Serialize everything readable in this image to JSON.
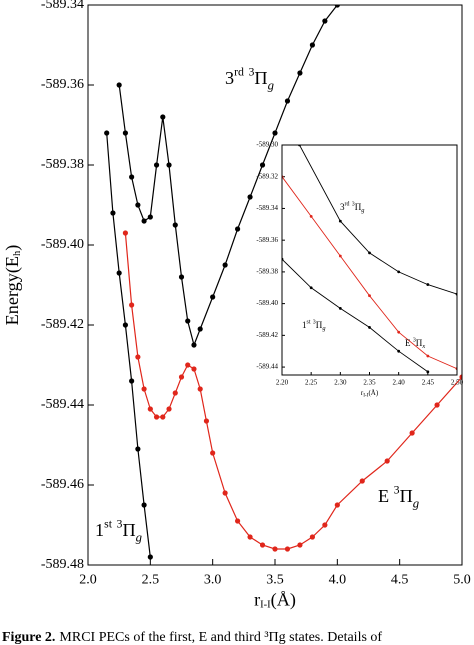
{
  "chart_data": [
    {
      "type": "line",
      "xlabel": [
        "r",
        "I-I",
        "(Å)"
      ],
      "ylabel": [
        "Energy(E",
        "h",
        ")"
      ],
      "xlim": [
        2.0,
        5.0
      ],
      "ylim": [
        -589.48,
        -589.34
      ],
      "xticks": [
        {
          "value": 2.0,
          "label": "2.0"
        },
        2.5,
        {
          "value": 3.0,
          "label": "3.0"
        },
        3.5,
        {
          "value": 4.0,
          "label": "4.0"
        },
        4.5,
        {
          "value": 5.0,
          "label": "5.0"
        }
      ],
      "yticks": [
        -589.48,
        -589.46,
        -589.44,
        -589.42,
        {
          "value": -589.4,
          "label": "-589.40"
        },
        -589.38,
        -589.36,
        -589.34
      ],
      "series": [
        {
          "name": "1st 3Πg",
          "color": "#000000",
          "x": [
            2.15,
            2.2,
            2.25,
            2.3,
            2.35,
            2.4,
            2.45,
            2.5
          ],
          "values": [
            -589.372,
            -589.392,
            -589.407,
            -589.42,
            -589.434,
            -589.451,
            -589.465,
            -589.478
          ]
        },
        {
          "name": "3rd 3Πg",
          "color": "#000000",
          "x": [
            2.25,
            2.3,
            2.35,
            2.4,
            2.45,
            2.5,
            2.55,
            2.6,
            2.65,
            2.7,
            2.75,
            2.8,
            2.85,
            2.9,
            3.0,
            3.1,
            3.2,
            3.3,
            3.4,
            3.5,
            3.6,
            3.7,
            3.8,
            3.9,
            4.0
          ],
          "values": [
            -589.36,
            -589.372,
            -589.383,
            -589.39,
            -589.394,
            -589.393,
            -589.38,
            -589.368,
            -589.38,
            -589.395,
            -589.408,
            -589.419,
            -589.425,
            -589.421,
            -589.413,
            -589.405,
            -589.396,
            -589.388,
            -589.38,
            -589.372,
            -589.364,
            -589.357,
            -589.35,
            -589.344,
            -589.34
          ]
        },
        {
          "name": "E 3Πg",
          "color": "#e0261b",
          "x": [
            2.3,
            2.35,
            2.4,
            2.45,
            2.5,
            2.55,
            2.6,
            2.65,
            2.7,
            2.75,
            2.8,
            2.85,
            2.9,
            2.95,
            3.0,
            3.1,
            3.2,
            3.3,
            3.4,
            3.5,
            3.6,
            3.7,
            3.8,
            3.9,
            4.0,
            4.2,
            4.4,
            4.6,
            4.8,
            5.0
          ],
          "values": [
            -589.397,
            -589.415,
            -589.428,
            -589.436,
            -589.441,
            -589.443,
            -589.443,
            -589.441,
            -589.437,
            -589.433,
            -589.43,
            -589.431,
            -589.436,
            -589.444,
            -589.452,
            -589.462,
            -589.469,
            -589.473,
            -589.475,
            -589.476,
            -589.476,
            -589.475,
            -589.473,
            -589.47,
            -589.465,
            -589.459,
            -589.454,
            -589.447,
            -589.44,
            -589.433
          ]
        }
      ]
    },
    {
      "type": "line",
      "xlabel": [
        "r",
        "I-I",
        "(Å)"
      ],
      "xlim": [
        2.2,
        2.5
      ],
      "ylim": [
        -589.445,
        -589.3
      ],
      "xticks": [
        {
          "value": 2.2,
          "label": "2.20"
        },
        2.25,
        {
          "value": 2.3,
          "label": "2.30"
        },
        2.35,
        {
          "value": 2.4,
          "label": "2.40"
        },
        2.45,
        {
          "value": 2.5,
          "label": "2.50"
        }
      ],
      "yticks": [
        {
          "value": -589.3,
          "label": "-589.30"
        },
        -589.32,
        -589.34,
        -589.36,
        -589.38,
        {
          "value": -589.4,
          "label": "-589.40"
        },
        -589.42,
        -589.44
      ],
      "series": [
        {
          "name": "3rd 3Πg",
          "color": "#000000",
          "x": [
            2.23,
            2.3,
            2.35,
            2.4,
            2.45,
            2.5
          ],
          "values": [
            -589.3,
            -589.348,
            -589.368,
            -589.38,
            -589.388,
            -589.394
          ]
        },
        {
          "name": "1st 3Πg",
          "color": "#000000",
          "x": [
            2.2,
            2.25,
            2.3,
            2.35,
            2.4,
            2.45
          ],
          "values": [
            -589.372,
            -589.39,
            -589.403,
            -589.415,
            -589.43,
            -589.443
          ]
        },
        {
          "name": "E 3Πx",
          "color": "#e0261b",
          "x": [
            2.2,
            2.25,
            2.3,
            2.35,
            2.4,
            2.45,
            2.5
          ],
          "values": [
            -589.32,
            -589.345,
            -589.37,
            -589.395,
            -589.418,
            -589.433,
            -589.441
          ]
        }
      ]
    }
  ],
  "caption": {
    "label": "Figure 2.",
    "text": "MRCI PECs of the first, E and third ³Πg states. Details of"
  }
}
